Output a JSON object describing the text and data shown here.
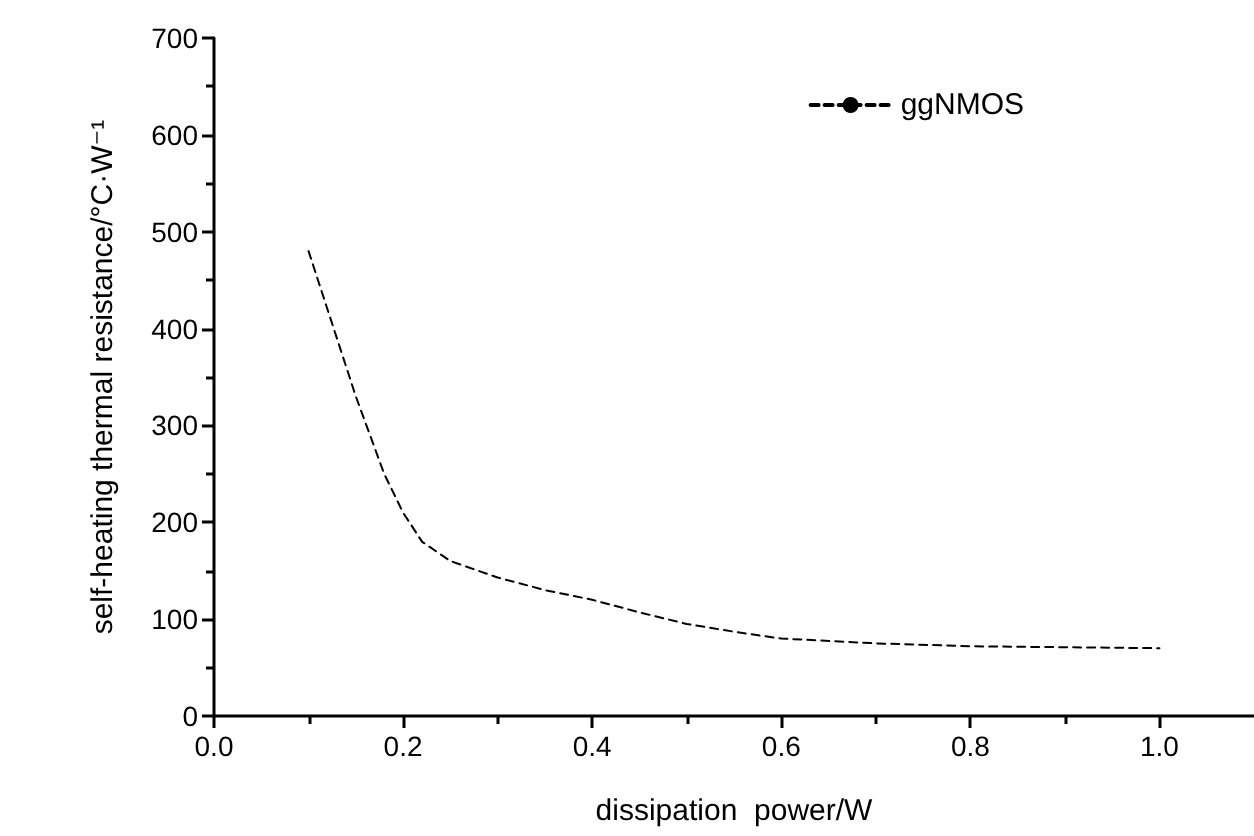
{
  "chart_data": {
    "type": "line",
    "xlabel": "dissipation  power/W",
    "ylabel": "self-heating thermal resistance/°C·W⁻¹",
    "xlim": [
      0,
      1.1
    ],
    "xticks": [
      {
        "value": 0,
        "label": "0.0"
      },
      {
        "value": 0.2,
        "label": "0.2"
      },
      {
        "value": 0.4,
        "label": "0.4"
      },
      {
        "value": 0.6,
        "label": "0.6"
      },
      {
        "value": 0.8,
        "label": "0.8"
      },
      {
        "value": 1.0,
        "label": "1.0"
      }
    ],
    "ylim": [
      0,
      700
    ],
    "yticks": [
      0,
      100,
      200,
      300,
      400,
      500,
      600,
      700
    ],
    "series": [
      {
        "name": "ggNMOS",
        "color": "#000000",
        "x": [
          0.1,
          0.12,
          0.15,
          0.18,
          0.2,
          0.22,
          0.25,
          0.3,
          0.35,
          0.4,
          0.45,
          0.5,
          0.55,
          0.6,
          0.7,
          0.8,
          0.9,
          1.0
        ],
        "values": [
          480,
          420,
          330,
          250,
          210,
          180,
          160,
          143,
          130,
          120,
          107,
          95,
          87,
          80,
          75,
          72,
          71,
          70
        ]
      }
    ],
    "line_style": "dashed",
    "marker": "none",
    "grid": false,
    "legend": "top right"
  }
}
